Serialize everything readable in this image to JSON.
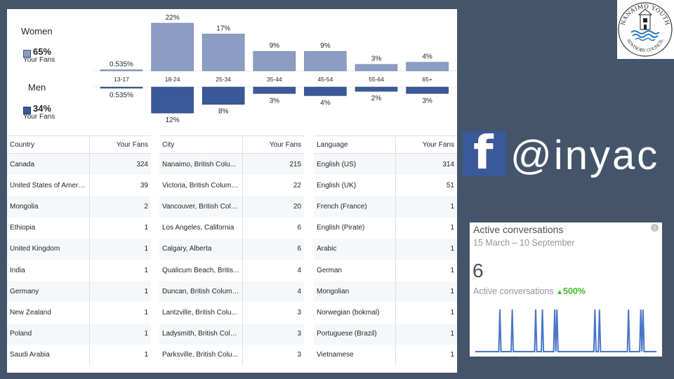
{
  "demographics": {
    "women": {
      "label": "Women",
      "percent": "65%",
      "fans_label": "Your Fans"
    },
    "men": {
      "label": "Men",
      "percent": "34%",
      "fans_label": "Your Fans"
    },
    "colors": {
      "women": "#8b9dc3",
      "men": "#3b5998"
    }
  },
  "chart_data": {
    "type": "bar",
    "categories": [
      "13-17",
      "18-24",
      "25-34",
      "35-44",
      "45-54",
      "55-64",
      "65+"
    ],
    "series": [
      {
        "name": "Women",
        "values": [
          0.535,
          22,
          17,
          9,
          9,
          3,
          4
        ],
        "labels": [
          "0.535%",
          "22%",
          "17%",
          "9%",
          "9%",
          "3%",
          "4%"
        ]
      },
      {
        "name": "Men",
        "values": [
          0.535,
          12,
          8,
          3,
          4,
          2,
          3
        ],
        "labels": [
          "0.535%",
          "12%",
          "8%",
          "3%",
          "4%",
          "2%",
          "3%"
        ]
      }
    ],
    "ylim": [
      0,
      22
    ]
  },
  "tables": {
    "country": {
      "headers": [
        "Country",
        "Your Fans"
      ],
      "rows": [
        [
          "Canada",
          "324"
        ],
        [
          "United States of America",
          "39"
        ],
        [
          "Mongolia",
          "2"
        ],
        [
          "Ethiopia",
          "1"
        ],
        [
          "United Kingdom",
          "1"
        ],
        [
          "India",
          "1"
        ],
        [
          "Germany",
          "1"
        ],
        [
          "New Zealand",
          "1"
        ],
        [
          "Poland",
          "1"
        ],
        [
          "Saudi Arabia",
          "1"
        ]
      ]
    },
    "city": {
      "headers": [
        "City",
        "Your Fans"
      ],
      "rows": [
        [
          "Nanaimo, British Colu...",
          "215"
        ],
        [
          "Victoria, British Columbia",
          "22"
        ],
        [
          "Vancouver, British Colu...",
          "20"
        ],
        [
          "Los Angeles, California",
          "6"
        ],
        [
          "Calgary, Alberta",
          "6"
        ],
        [
          "Qualicum Beach, Britis...",
          "4"
        ],
        [
          "Duncan, British Columbia",
          "4"
        ],
        [
          "Lantzville, British Colu...",
          "3"
        ],
        [
          "Ladysmith, British Colu...",
          "3"
        ],
        [
          "Parksville, British Colu...",
          "3"
        ]
      ]
    },
    "language": {
      "headers": [
        "Language",
        "Your Fans"
      ],
      "rows": [
        [
          "English (US)",
          "314"
        ],
        [
          "English (UK)",
          "51"
        ],
        [
          "French (France)",
          "1"
        ],
        [
          "English (Pirate)",
          "1"
        ],
        [
          "Arabic",
          "1"
        ],
        [
          "German",
          "1"
        ],
        [
          "Mongolian",
          "1"
        ],
        [
          "Norwegian (bokmal)",
          "1"
        ],
        [
          "Portuguese (Brazil)",
          "1"
        ],
        [
          "Vietnamese",
          "1"
        ]
      ]
    }
  },
  "logo": {
    "text_top": "NANAIMO YOUTH",
    "text_bottom": "ADVISORY COUNCIL"
  },
  "social": {
    "icon": "facebook-icon",
    "handle": "@inyac",
    "color": "#3b5998"
  },
  "conversations": {
    "title": "Active conversations",
    "date_range": "15 March – 10 September",
    "count": "6",
    "sub_label": "Active conversations",
    "change": "500%",
    "trend": "up",
    "spark_color": "#4a76c9",
    "spark_values": [
      0,
      0,
      0,
      0,
      0,
      0,
      0,
      0,
      0,
      0,
      0,
      0,
      0,
      0,
      0,
      0,
      0,
      0,
      0,
      0,
      0,
      0,
      1,
      0,
      0,
      0,
      0,
      0,
      0,
      0,
      0,
      0,
      0,
      1,
      0,
      0,
      0,
      0,
      0,
      0,
      0,
      0,
      0,
      0,
      0,
      0,
      0,
      0,
      0,
      0,
      0,
      0,
      0,
      0,
      1,
      0,
      0,
      0,
      0,
      0,
      1,
      0,
      0,
      0,
      0,
      0,
      0,
      0,
      0,
      0,
      0,
      1,
      0,
      1,
      0,
      0,
      0,
      0,
      0,
      0,
      0,
      0,
      0,
      0,
      0,
      0,
      0,
      0,
      0,
      0,
      0,
      0,
      0,
      0,
      0,
      0,
      0,
      0,
      0,
      0,
      0,
      0,
      0,
      0,
      0,
      0,
      0,
      1,
      0,
      0,
      0,
      1,
      0,
      0,
      0,
      0,
      0,
      0,
      0,
      0,
      0,
      0,
      0,
      0,
      0,
      0,
      0,
      0,
      0,
      0,
      0,
      0,
      0,
      0,
      0,
      0,
      0,
      1,
      0,
      0,
      0,
      0,
      0,
      0,
      0,
      0,
      0,
      0,
      1,
      0,
      1,
      0,
      0,
      0,
      0,
      0,
      0,
      0,
      0,
      0,
      0,
      0,
      0
    ]
  }
}
